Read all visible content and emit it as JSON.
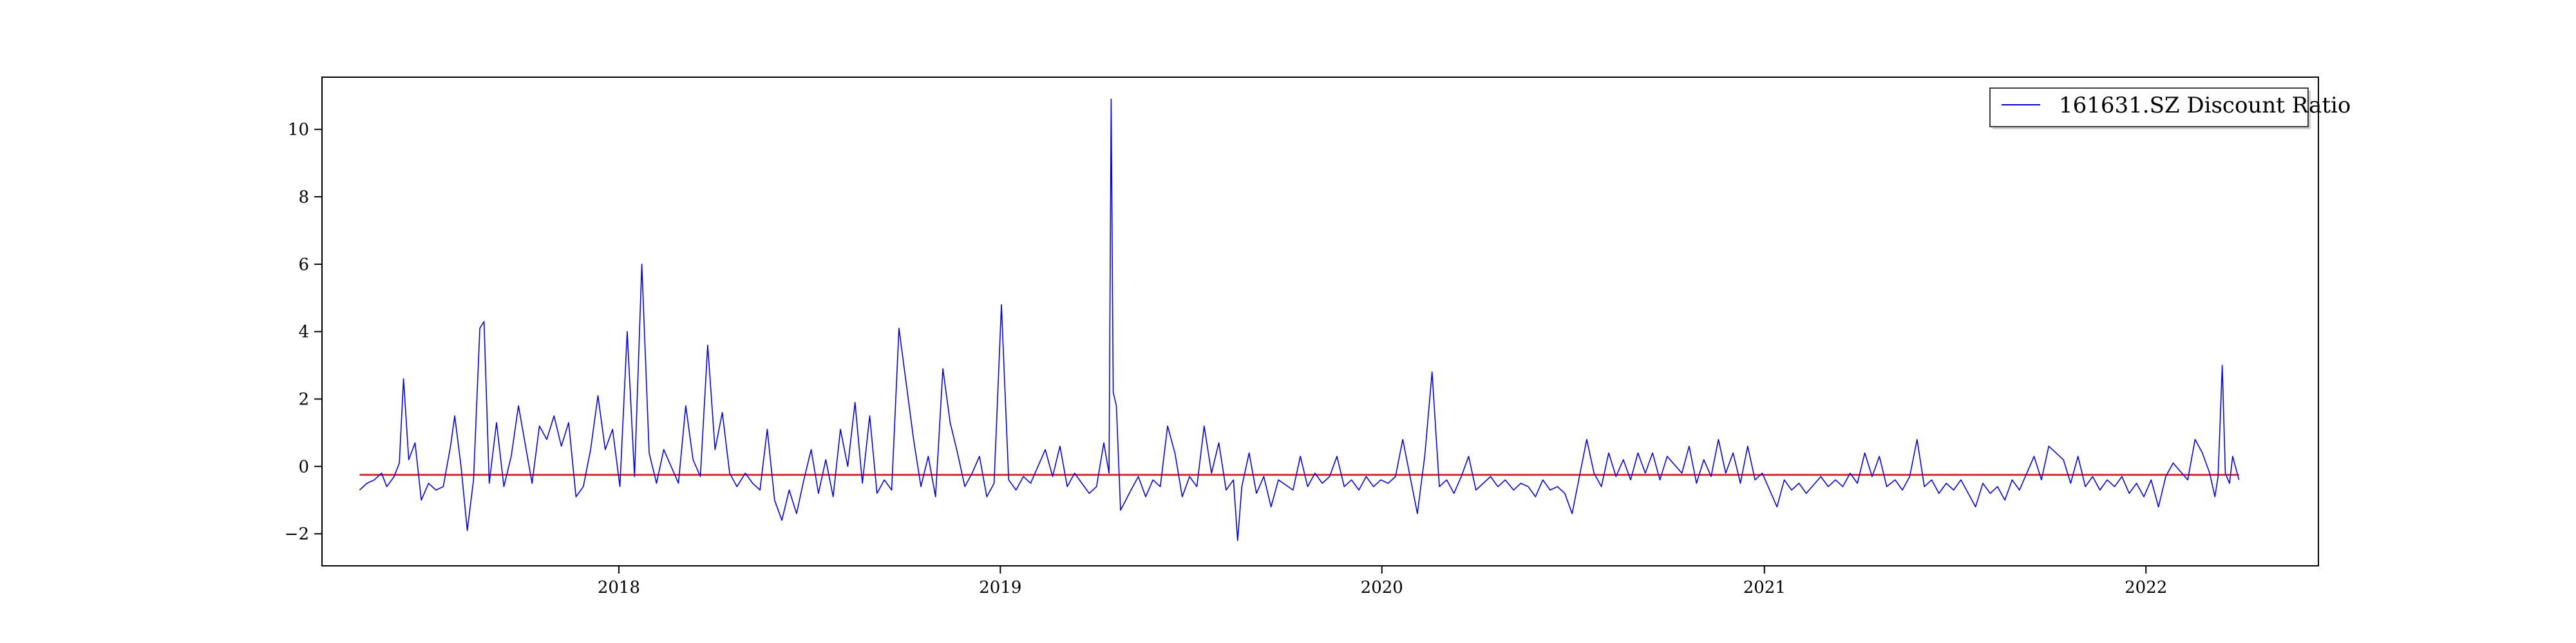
{
  "chart_data": {
    "type": "line",
    "title": "",
    "xlabel": "",
    "ylabel": "",
    "x_range": [
      "2017-03-23",
      "2022-06-15"
    ],
    "ylim": [
      -2.95,
      11.55
    ],
    "x_ticks": [
      "2018-01-01",
      "2019-01-01",
      "2020-01-01",
      "2021-01-01",
      "2022-01-01"
    ],
    "x_tick_labels": [
      "2018",
      "2019",
      "2020",
      "2021",
      "2022"
    ],
    "y_ticks": [
      -2,
      0,
      2,
      4,
      6,
      8,
      10
    ],
    "y_tick_labels": [
      "−2",
      "0",
      "2",
      "4",
      "6",
      "8",
      "10"
    ],
    "grid": false,
    "legend_position": "top-right",
    "reference_line": {
      "y": -0.25,
      "x_start": "2017-04-28",
      "x_end": "2022-03-31",
      "color": "#ff0000"
    },
    "series": [
      {
        "name": "161631.SZ Discount Ratio",
        "color": "#0000ff",
        "points": [
          [
            "2017-04-28",
            -0.7
          ],
          [
            "2017-05-05",
            -0.5
          ],
          [
            "2017-05-12",
            -0.4
          ],
          [
            "2017-05-19",
            -0.2
          ],
          [
            "2017-05-24",
            -0.6
          ],
          [
            "2017-05-31",
            -0.3
          ],
          [
            "2017-06-05",
            0.1
          ],
          [
            "2017-06-09",
            2.6
          ],
          [
            "2017-06-14",
            0.2
          ],
          [
            "2017-06-20",
            0.7
          ],
          [
            "2017-06-26",
            -1.0
          ],
          [
            "2017-07-03",
            -0.5
          ],
          [
            "2017-07-10",
            -0.7
          ],
          [
            "2017-07-17",
            -0.6
          ],
          [
            "2017-07-24",
            0.6
          ],
          [
            "2017-07-28",
            1.5
          ],
          [
            "2017-08-03",
            0.0
          ],
          [
            "2017-08-09",
            -1.9
          ],
          [
            "2017-08-15",
            -0.4
          ],
          [
            "2017-08-21",
            4.1
          ],
          [
            "2017-08-25",
            4.3
          ],
          [
            "2017-08-30",
            -0.5
          ],
          [
            "2017-09-06",
            1.3
          ],
          [
            "2017-09-13",
            -0.6
          ],
          [
            "2017-09-20",
            0.3
          ],
          [
            "2017-09-27",
            1.8
          ],
          [
            "2017-10-10",
            -0.5
          ],
          [
            "2017-10-17",
            1.2
          ],
          [
            "2017-10-24",
            0.8
          ],
          [
            "2017-10-31",
            1.5
          ],
          [
            "2017-11-07",
            0.6
          ],
          [
            "2017-11-14",
            1.3
          ],
          [
            "2017-11-21",
            -0.9
          ],
          [
            "2017-11-28",
            -0.6
          ],
          [
            "2017-12-05",
            0.5
          ],
          [
            "2017-12-12",
            2.1
          ],
          [
            "2017-12-19",
            0.5
          ],
          [
            "2017-12-26",
            1.1
          ],
          [
            "2018-01-02",
            -0.6
          ],
          [
            "2018-01-09",
            4.0
          ],
          [
            "2018-01-16",
            -0.3
          ],
          [
            "2018-01-23",
            6.0
          ],
          [
            "2018-01-30",
            0.4
          ],
          [
            "2018-02-06",
            -0.5
          ],
          [
            "2018-02-13",
            0.5
          ],
          [
            "2018-02-27",
            -0.5
          ],
          [
            "2018-03-06",
            1.8
          ],
          [
            "2018-03-13",
            0.2
          ],
          [
            "2018-03-20",
            -0.3
          ],
          [
            "2018-03-27",
            3.6
          ],
          [
            "2018-04-03",
            0.5
          ],
          [
            "2018-04-10",
            1.6
          ],
          [
            "2018-04-17",
            -0.2
          ],
          [
            "2018-04-24",
            -0.6
          ],
          [
            "2018-05-02",
            -0.2
          ],
          [
            "2018-05-09",
            -0.5
          ],
          [
            "2018-05-16",
            -0.7
          ],
          [
            "2018-05-23",
            1.1
          ],
          [
            "2018-05-30",
            -1.0
          ],
          [
            "2018-06-06",
            -1.6
          ],
          [
            "2018-06-13",
            -0.7
          ],
          [
            "2018-06-20",
            -1.4
          ],
          [
            "2018-06-27",
            -0.4
          ],
          [
            "2018-07-04",
            0.5
          ],
          [
            "2018-07-11",
            -0.8
          ],
          [
            "2018-07-18",
            0.2
          ],
          [
            "2018-07-25",
            -0.9
          ],
          [
            "2018-08-01",
            1.1
          ],
          [
            "2018-08-08",
            0.0
          ],
          [
            "2018-08-15",
            1.9
          ],
          [
            "2018-08-22",
            -0.5
          ],
          [
            "2018-08-29",
            1.5
          ],
          [
            "2018-09-05",
            -0.8
          ],
          [
            "2018-09-12",
            -0.4
          ],
          [
            "2018-09-19",
            -0.7
          ],
          [
            "2018-09-26",
            4.1
          ],
          [
            "2018-10-10",
            0.8
          ],
          [
            "2018-10-17",
            -0.6
          ],
          [
            "2018-10-24",
            0.3
          ],
          [
            "2018-10-31",
            -0.9
          ],
          [
            "2018-11-07",
            2.9
          ],
          [
            "2018-11-14",
            1.3
          ],
          [
            "2018-11-21",
            0.4
          ],
          [
            "2018-11-28",
            -0.6
          ],
          [
            "2018-12-05",
            -0.2
          ],
          [
            "2018-12-12",
            0.3
          ],
          [
            "2018-12-19",
            -0.9
          ],
          [
            "2018-12-26",
            -0.5
          ],
          [
            "2019-01-02",
            4.8
          ],
          [
            "2019-01-09",
            -0.4
          ],
          [
            "2019-01-16",
            -0.7
          ],
          [
            "2019-01-23",
            -0.3
          ],
          [
            "2019-01-30",
            -0.5
          ],
          [
            "2019-02-13",
            0.5
          ],
          [
            "2019-02-20",
            -0.3
          ],
          [
            "2019-02-27",
            0.6
          ],
          [
            "2019-03-06",
            -0.6
          ],
          [
            "2019-03-13",
            -0.2
          ],
          [
            "2019-03-20",
            -0.5
          ],
          [
            "2019-03-27",
            -0.8
          ],
          [
            "2019-04-03",
            -0.6
          ],
          [
            "2019-04-10",
            0.7
          ],
          [
            "2019-04-15",
            -0.2
          ],
          [
            "2019-04-17",
            10.9
          ],
          [
            "2019-04-19",
            2.2
          ],
          [
            "2019-04-22",
            1.8
          ],
          [
            "2019-04-26",
            -1.3
          ],
          [
            "2019-05-06",
            -0.7
          ],
          [
            "2019-05-13",
            -0.3
          ],
          [
            "2019-05-20",
            -0.9
          ],
          [
            "2019-05-27",
            -0.4
          ],
          [
            "2019-06-03",
            -0.6
          ],
          [
            "2019-06-10",
            1.2
          ],
          [
            "2019-06-17",
            0.4
          ],
          [
            "2019-06-24",
            -0.9
          ],
          [
            "2019-07-01",
            -0.3
          ],
          [
            "2019-07-08",
            -0.6
          ],
          [
            "2019-07-15",
            1.2
          ],
          [
            "2019-07-22",
            -0.2
          ],
          [
            "2019-07-29",
            0.7
          ],
          [
            "2019-08-05",
            -0.7
          ],
          [
            "2019-08-12",
            -0.4
          ],
          [
            "2019-08-16",
            -2.2
          ],
          [
            "2019-08-20",
            -0.6
          ],
          [
            "2019-08-27",
            0.4
          ],
          [
            "2019-09-03",
            -0.8
          ],
          [
            "2019-09-10",
            -0.3
          ],
          [
            "2019-09-17",
            -1.2
          ],
          [
            "2019-09-24",
            -0.4
          ],
          [
            "2019-10-08",
            -0.7
          ],
          [
            "2019-10-15",
            0.3
          ],
          [
            "2019-10-22",
            -0.6
          ],
          [
            "2019-10-29",
            -0.2
          ],
          [
            "2019-11-05",
            -0.5
          ],
          [
            "2019-11-12",
            -0.3
          ],
          [
            "2019-11-19",
            0.3
          ],
          [
            "2019-11-26",
            -0.6
          ],
          [
            "2019-12-03",
            -0.4
          ],
          [
            "2019-12-10",
            -0.7
          ],
          [
            "2019-12-17",
            -0.3
          ],
          [
            "2019-12-24",
            -0.6
          ],
          [
            "2019-12-31",
            -0.4
          ],
          [
            "2020-01-07",
            -0.5
          ],
          [
            "2020-01-14",
            -0.3
          ],
          [
            "2020-01-21",
            0.8
          ],
          [
            "2020-02-04",
            -1.4
          ],
          [
            "2020-02-11",
            0.3
          ],
          [
            "2020-02-18",
            2.8
          ],
          [
            "2020-02-25",
            -0.6
          ],
          [
            "2020-03-03",
            -0.4
          ],
          [
            "2020-03-10",
            -0.8
          ],
          [
            "2020-03-17",
            -0.3
          ],
          [
            "2020-03-24",
            0.3
          ],
          [
            "2020-03-31",
            -0.7
          ],
          [
            "2020-04-07",
            -0.5
          ],
          [
            "2020-04-14",
            -0.3
          ],
          [
            "2020-04-21",
            -0.6
          ],
          [
            "2020-04-28",
            -0.4
          ],
          [
            "2020-05-06",
            -0.7
          ],
          [
            "2020-05-13",
            -0.5
          ],
          [
            "2020-05-20",
            -0.6
          ],
          [
            "2020-05-27",
            -0.9
          ],
          [
            "2020-06-03",
            -0.4
          ],
          [
            "2020-06-10",
            -0.7
          ],
          [
            "2020-06-17",
            -0.6
          ],
          [
            "2020-06-24",
            -0.8
          ],
          [
            "2020-07-01",
            -1.4
          ],
          [
            "2020-07-08",
            -0.3
          ],
          [
            "2020-07-15",
            0.8
          ],
          [
            "2020-07-22",
            -0.2
          ],
          [
            "2020-07-29",
            -0.6
          ],
          [
            "2020-08-05",
            0.4
          ],
          [
            "2020-08-12",
            -0.3
          ],
          [
            "2020-08-19",
            0.2
          ],
          [
            "2020-08-26",
            -0.4
          ],
          [
            "2020-09-02",
            0.4
          ],
          [
            "2020-09-09",
            -0.2
          ],
          [
            "2020-09-16",
            0.4
          ],
          [
            "2020-09-23",
            -0.4
          ],
          [
            "2020-09-30",
            0.3
          ],
          [
            "2020-10-14",
            -0.2
          ],
          [
            "2020-10-21",
            0.6
          ],
          [
            "2020-10-28",
            -0.5
          ],
          [
            "2020-11-04",
            0.2
          ],
          [
            "2020-11-11",
            -0.3
          ],
          [
            "2020-11-18",
            0.8
          ],
          [
            "2020-11-25",
            -0.2
          ],
          [
            "2020-12-02",
            0.4
          ],
          [
            "2020-12-09",
            -0.5
          ],
          [
            "2020-12-16",
            0.6
          ],
          [
            "2020-12-23",
            -0.4
          ],
          [
            "2020-12-30",
            -0.2
          ],
          [
            "2021-01-06",
            -0.7
          ],
          [
            "2021-01-13",
            -1.2
          ],
          [
            "2021-01-20",
            -0.4
          ],
          [
            "2021-01-27",
            -0.7
          ],
          [
            "2021-02-03",
            -0.5
          ],
          [
            "2021-02-10",
            -0.8
          ],
          [
            "2021-02-24",
            -0.3
          ],
          [
            "2021-03-03",
            -0.6
          ],
          [
            "2021-03-10",
            -0.4
          ],
          [
            "2021-03-17",
            -0.6
          ],
          [
            "2021-03-24",
            -0.2
          ],
          [
            "2021-03-31",
            -0.5
          ],
          [
            "2021-04-07",
            0.4
          ],
          [
            "2021-04-14",
            -0.3
          ],
          [
            "2021-04-21",
            0.3
          ],
          [
            "2021-04-28",
            -0.6
          ],
          [
            "2021-05-06",
            -0.4
          ],
          [
            "2021-05-13",
            -0.7
          ],
          [
            "2021-05-20",
            -0.3
          ],
          [
            "2021-05-27",
            0.8
          ],
          [
            "2021-06-03",
            -0.6
          ],
          [
            "2021-06-10",
            -0.4
          ],
          [
            "2021-06-17",
            -0.8
          ],
          [
            "2021-06-24",
            -0.5
          ],
          [
            "2021-07-01",
            -0.7
          ],
          [
            "2021-07-08",
            -0.4
          ],
          [
            "2021-07-15",
            -0.8
          ],
          [
            "2021-07-22",
            -1.2
          ],
          [
            "2021-07-29",
            -0.5
          ],
          [
            "2021-08-05",
            -0.8
          ],
          [
            "2021-08-12",
            -0.6
          ],
          [
            "2021-08-19",
            -1.0
          ],
          [
            "2021-08-26",
            -0.4
          ],
          [
            "2021-09-02",
            -0.7
          ],
          [
            "2021-09-09",
            -0.2
          ],
          [
            "2021-09-16",
            0.3
          ],
          [
            "2021-09-23",
            -0.4
          ],
          [
            "2021-09-30",
            0.6
          ],
          [
            "2021-10-14",
            0.2
          ],
          [
            "2021-10-21",
            -0.5
          ],
          [
            "2021-10-28",
            0.3
          ],
          [
            "2021-11-04",
            -0.6
          ],
          [
            "2021-11-11",
            -0.3
          ],
          [
            "2021-11-18",
            -0.7
          ],
          [
            "2021-11-25",
            -0.4
          ],
          [
            "2021-12-02",
            -0.6
          ],
          [
            "2021-12-09",
            -0.3
          ],
          [
            "2021-12-16",
            -0.8
          ],
          [
            "2021-12-23",
            -0.5
          ],
          [
            "2021-12-30",
            -0.9
          ],
          [
            "2022-01-06",
            -0.4
          ],
          [
            "2022-01-13",
            -1.2
          ],
          [
            "2022-01-20",
            -0.3
          ],
          [
            "2022-01-27",
            0.1
          ],
          [
            "2022-02-10",
            -0.4
          ],
          [
            "2022-02-17",
            0.8
          ],
          [
            "2022-02-24",
            0.4
          ],
          [
            "2022-03-03",
            -0.2
          ],
          [
            "2022-03-08",
            -0.9
          ],
          [
            "2022-03-11",
            -0.3
          ],
          [
            "2022-03-15",
            3.0
          ],
          [
            "2022-03-18",
            -0.2
          ],
          [
            "2022-03-22",
            -0.5
          ],
          [
            "2022-03-25",
            0.3
          ],
          [
            "2022-03-31",
            -0.4
          ]
        ]
      }
    ]
  }
}
